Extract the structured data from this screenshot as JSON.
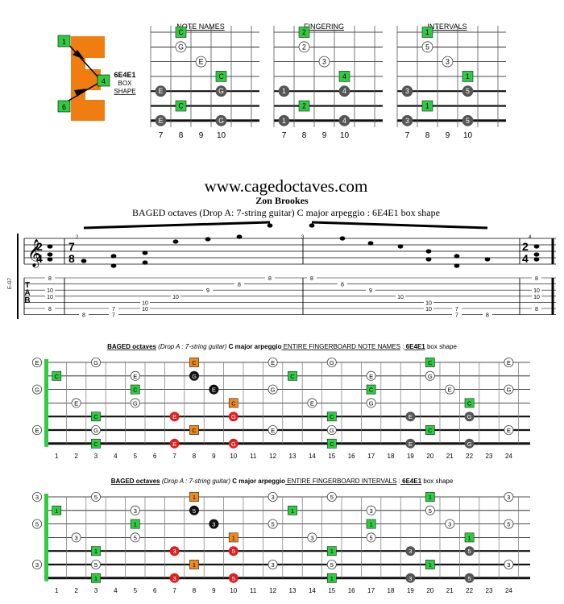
{
  "logo": {
    "letter": "E",
    "nodes": [
      "1",
      "4",
      "6"
    ],
    "shape_name": "6E4E1",
    "shape_word1": "BOX",
    "shape_word2": "SHAPE"
  },
  "small_diagrams": [
    {
      "title": "NOTE NAMES",
      "frets": [
        "7",
        "8",
        "9",
        "10"
      ],
      "markers": [
        {
          "s": 0,
          "f": 8,
          "t": "C",
          "k": "root"
        },
        {
          "s": 1,
          "f": 8,
          "t": "G",
          "k": "w"
        },
        {
          "s": 2,
          "f": 9,
          "t": "E",
          "k": "w"
        },
        {
          "s": 3,
          "f": 10,
          "t": "C",
          "k": "root"
        },
        {
          "s": 4,
          "f": 7,
          "t": "E",
          "k": "grey"
        },
        {
          "s": 4,
          "f": 10,
          "t": "G",
          "k": "grey"
        },
        {
          "s": 5,
          "f": 8,
          "t": "C",
          "k": "root"
        },
        {
          "s": 6,
          "f": 7,
          "t": "E",
          "k": "grey"
        },
        {
          "s": 6,
          "f": 10,
          "t": "G",
          "k": "grey"
        }
      ]
    },
    {
      "title": "FINGERING",
      "frets": [
        "7",
        "8",
        "9",
        "10"
      ],
      "markers": [
        {
          "s": 0,
          "f": 8,
          "t": "2",
          "k": "root"
        },
        {
          "s": 1,
          "f": 8,
          "t": "2",
          "k": "w"
        },
        {
          "s": 2,
          "f": 9,
          "t": "3",
          "k": "w"
        },
        {
          "s": 3,
          "f": 10,
          "t": "4",
          "k": "root"
        },
        {
          "s": 4,
          "f": 7,
          "t": "1",
          "k": "grey"
        },
        {
          "s": 4,
          "f": 10,
          "t": "4",
          "k": "grey"
        },
        {
          "s": 5,
          "f": 8,
          "t": "2",
          "k": "root"
        },
        {
          "s": 6,
          "f": 7,
          "t": "1",
          "k": "grey"
        },
        {
          "s": 6,
          "f": 10,
          "t": "4",
          "k": "grey"
        }
      ]
    },
    {
      "title": "INTERVALS",
      "frets": [
        "7",
        "8",
        "9",
        "10"
      ],
      "markers": [
        {
          "s": 0,
          "f": 8,
          "t": "1",
          "k": "root"
        },
        {
          "s": 1,
          "f": 8,
          "t": "5",
          "k": "w"
        },
        {
          "s": 2,
          "f": 9,
          "t": "3",
          "k": "w"
        },
        {
          "s": 3,
          "f": 10,
          "t": "1",
          "k": "root"
        },
        {
          "s": 4,
          "f": 7,
          "t": "3",
          "k": "grey"
        },
        {
          "s": 4,
          "f": 10,
          "t": "5",
          "k": "grey"
        },
        {
          "s": 5,
          "f": 8,
          "t": "1",
          "k": "root"
        },
        {
          "s": 6,
          "f": 7,
          "t": "3",
          "k": "grey"
        },
        {
          "s": 6,
          "f": 10,
          "t": "5",
          "k": "grey"
        }
      ]
    }
  ],
  "header": {
    "site": "www.cagedoctaves.com",
    "author": "Zon Brookes",
    "subtitle": "BAGED octaves (Drop A: 7-string guitar) C major arpeggio : 6E4E1 box shape"
  },
  "score": {
    "time_sig_top": "2",
    "time_sig_bottom": "4",
    "time_sig2_top": "7",
    "time_sig2_bottom": "8",
    "measure_numbers": [
      "2",
      "3",
      "4"
    ],
    "tuning_label": "E-G7",
    "tab_letters": [
      "T",
      "A",
      "B"
    ],
    "tab_numbers": [
      {
        "s": 0,
        "c": 0,
        "t": "8"
      },
      {
        "s": 2,
        "c": 0,
        "t": "10"
      },
      {
        "s": 3,
        "c": 0,
        "t": "10"
      },
      {
        "s": 5,
        "c": 0,
        "t": "8"
      },
      {
        "s": 6,
        "c": 1,
        "t": "8"
      },
      {
        "s": 5,
        "c": 2,
        "t": "7"
      },
      {
        "s": 6,
        "c": 2,
        "t": "7"
      },
      {
        "s": 4,
        "c": 3,
        "t": "10"
      },
      {
        "s": 5,
        "c": 3,
        "t": "10"
      },
      {
        "s": 3,
        "c": 4,
        "t": "10"
      },
      {
        "s": 2,
        "c": 5,
        "t": "9"
      },
      {
        "s": 1,
        "c": 6,
        "t": "8"
      },
      {
        "s": 0,
        "c": 7,
        "t": "8"
      },
      {
        "s": 0,
        "c": 8,
        "t": "8"
      },
      {
        "s": 1,
        "c": 9,
        "t": "8"
      },
      {
        "s": 2,
        "c": 10,
        "t": "9"
      },
      {
        "s": 3,
        "c": 11,
        "t": "10"
      },
      {
        "s": 4,
        "c": 12,
        "t": "10"
      },
      {
        "s": 5,
        "c": 12,
        "t": "10"
      },
      {
        "s": 5,
        "c": 13,
        "t": "7"
      },
      {
        "s": 6,
        "c": 13,
        "t": "7"
      },
      {
        "s": 6,
        "c": 14,
        "t": "8"
      },
      {
        "s": 0,
        "c": 15,
        "t": "8"
      },
      {
        "s": 2,
        "c": 15,
        "t": "10"
      },
      {
        "s": 3,
        "c": 15,
        "t": "10"
      },
      {
        "s": 5,
        "c": 15,
        "t": "8"
      }
    ]
  },
  "fretboards": [
    {
      "title_bold": "BAGED octaves",
      "title_paren": "(Drop A : 7-string guitar)",
      "title_mid": "C major arpeggio",
      "title_under": "ENTIRE FINGERBOARD NOTE NAMES",
      "title_sep": ":",
      "title_shape": "6E4E1",
      "title_tail": "box shape",
      "fret_numbers": [
        "1",
        "2",
        "3",
        "4",
        "5",
        "6",
        "7",
        "8",
        "9",
        "10",
        "11",
        "12",
        "13",
        "14",
        "15",
        "16",
        "17",
        "18",
        "19",
        "20",
        "21",
        "22",
        "23",
        "24"
      ],
      "markers": [
        {
          "s": 0,
          "f": 0,
          "t": "E",
          "k": "w"
        },
        {
          "s": 0,
          "f": 3,
          "t": "G",
          "k": "w"
        },
        {
          "s": 0,
          "f": 8,
          "t": "C",
          "k": "orange"
        },
        {
          "s": 0,
          "f": 12,
          "t": "E",
          "k": "w"
        },
        {
          "s": 0,
          "f": 15,
          "t": "G",
          "k": "w"
        },
        {
          "s": 0,
          "f": 20,
          "t": "C",
          "k": "root"
        },
        {
          "s": 0,
          "f": 24,
          "t": "E",
          "k": "w"
        },
        {
          "s": 1,
          "f": 1,
          "t": "C",
          "k": "root"
        },
        {
          "s": 1,
          "f": 5,
          "t": "E",
          "k": "w"
        },
        {
          "s": 1,
          "f": 8,
          "t": "G",
          "k": "black"
        },
        {
          "s": 1,
          "f": 13,
          "t": "C",
          "k": "root"
        },
        {
          "s": 1,
          "f": 17,
          "t": "E",
          "k": "w"
        },
        {
          "s": 1,
          "f": 20,
          "t": "G",
          "k": "w"
        },
        {
          "s": 2,
          "f": 0,
          "t": "G",
          "k": "w"
        },
        {
          "s": 2,
          "f": 5,
          "t": "C",
          "k": "root"
        },
        {
          "s": 2,
          "f": 9,
          "t": "E",
          "k": "black"
        },
        {
          "s": 2,
          "f": 12,
          "t": "G",
          "k": "w"
        },
        {
          "s": 2,
          "f": 17,
          "t": "C",
          "k": "root"
        },
        {
          "s": 2,
          "f": 21,
          "t": "E",
          "k": "w"
        },
        {
          "s": 2,
          "f": 24,
          "t": "G",
          "k": "w"
        },
        {
          "s": 3,
          "f": 2,
          "t": "E",
          "k": "w"
        },
        {
          "s": 3,
          "f": 5,
          "t": "G",
          "k": "w"
        },
        {
          "s": 3,
          "f": 10,
          "t": "C",
          "k": "orange"
        },
        {
          "s": 3,
          "f": 14,
          "t": "E",
          "k": "w"
        },
        {
          "s": 3,
          "f": 17,
          "t": "G",
          "k": "w"
        },
        {
          "s": 3,
          "f": 22,
          "t": "C",
          "k": "root"
        },
        {
          "s": 4,
          "f": 3,
          "t": "C",
          "k": "root"
        },
        {
          "s": 4,
          "f": 7,
          "t": "E",
          "k": "red"
        },
        {
          "s": 4,
          "f": 10,
          "t": "G",
          "k": "red"
        },
        {
          "s": 4,
          "f": 15,
          "t": "C",
          "k": "root"
        },
        {
          "s": 4,
          "f": 19,
          "t": "E",
          "k": "grey"
        },
        {
          "s": 4,
          "f": 22,
          "t": "G",
          "k": "grey"
        },
        {
          "s": 5,
          "f": 0,
          "t": "E",
          "k": "w"
        },
        {
          "s": 5,
          "f": 3,
          "t": "G",
          "k": "w"
        },
        {
          "s": 5,
          "f": 8,
          "t": "C",
          "k": "orange"
        },
        {
          "s": 5,
          "f": 12,
          "t": "E",
          "k": "w"
        },
        {
          "s": 5,
          "f": 15,
          "t": "G",
          "k": "w"
        },
        {
          "s": 5,
          "f": 20,
          "t": "C",
          "k": "root"
        },
        {
          "s": 5,
          "f": 24,
          "t": "E",
          "k": "w"
        },
        {
          "s": 6,
          "f": 3,
          "t": "C",
          "k": "root"
        },
        {
          "s": 6,
          "f": 7,
          "t": "E",
          "k": "red"
        },
        {
          "s": 6,
          "f": 10,
          "t": "G",
          "k": "red"
        },
        {
          "s": 6,
          "f": 15,
          "t": "C",
          "k": "root"
        },
        {
          "s": 6,
          "f": 19,
          "t": "E",
          "k": "grey"
        },
        {
          "s": 6,
          "f": 22,
          "t": "G",
          "k": "grey"
        }
      ]
    },
    {
      "title_bold": "BAGED octaves",
      "title_paren": "(Drop A : 7-string guitar)",
      "title_mid": "C major arpeggio",
      "title_under": "ENTIRE FINGERBOARD INTERVALS",
      "title_sep": ":",
      "title_shape": "6E4E1",
      "title_tail": "box shape",
      "fret_numbers": [
        "1",
        "2",
        "3",
        "4",
        "5",
        "6",
        "7",
        "8",
        "9",
        "10",
        "11",
        "12",
        "13",
        "14",
        "15",
        "16",
        "17",
        "18",
        "19",
        "20",
        "21",
        "22",
        "23",
        "24"
      ],
      "markers": [
        {
          "s": 0,
          "f": 0,
          "t": "3",
          "k": "w"
        },
        {
          "s": 0,
          "f": 3,
          "t": "5",
          "k": "w"
        },
        {
          "s": 0,
          "f": 8,
          "t": "1",
          "k": "orange"
        },
        {
          "s": 0,
          "f": 12,
          "t": "3",
          "k": "w"
        },
        {
          "s": 0,
          "f": 15,
          "t": "5",
          "k": "w"
        },
        {
          "s": 0,
          "f": 20,
          "t": "1",
          "k": "root"
        },
        {
          "s": 0,
          "f": 24,
          "t": "3",
          "k": "w"
        },
        {
          "s": 1,
          "f": 1,
          "t": "1",
          "k": "root"
        },
        {
          "s": 1,
          "f": 5,
          "t": "3",
          "k": "w"
        },
        {
          "s": 1,
          "f": 8,
          "t": "5",
          "k": "black"
        },
        {
          "s": 1,
          "f": 13,
          "t": "1",
          "k": "root"
        },
        {
          "s": 1,
          "f": 17,
          "t": "3",
          "k": "w"
        },
        {
          "s": 1,
          "f": 20,
          "t": "5",
          "k": "w"
        },
        {
          "s": 2,
          "f": 0,
          "t": "5",
          "k": "w"
        },
        {
          "s": 2,
          "f": 5,
          "t": "1",
          "k": "root"
        },
        {
          "s": 2,
          "f": 9,
          "t": "3",
          "k": "black"
        },
        {
          "s": 2,
          "f": 12,
          "t": "5",
          "k": "w"
        },
        {
          "s": 2,
          "f": 17,
          "t": "1",
          "k": "root"
        },
        {
          "s": 2,
          "f": 21,
          "t": "3",
          "k": "w"
        },
        {
          "s": 2,
          "f": 24,
          "t": "5",
          "k": "w"
        },
        {
          "s": 3,
          "f": 2,
          "t": "3",
          "k": "w"
        },
        {
          "s": 3,
          "f": 5,
          "t": "5",
          "k": "w"
        },
        {
          "s": 3,
          "f": 10,
          "t": "1",
          "k": "orange"
        },
        {
          "s": 3,
          "f": 14,
          "t": "3",
          "k": "w"
        },
        {
          "s": 3,
          "f": 17,
          "t": "5",
          "k": "w"
        },
        {
          "s": 3,
          "f": 22,
          "t": "1",
          "k": "root"
        },
        {
          "s": 4,
          "f": 3,
          "t": "1",
          "k": "root"
        },
        {
          "s": 4,
          "f": 7,
          "t": "3",
          "k": "red"
        },
        {
          "s": 4,
          "f": 10,
          "t": "5",
          "k": "red"
        },
        {
          "s": 4,
          "f": 15,
          "t": "1",
          "k": "root"
        },
        {
          "s": 4,
          "f": 19,
          "t": "3",
          "k": "grey"
        },
        {
          "s": 4,
          "f": 22,
          "t": "5",
          "k": "grey"
        },
        {
          "s": 5,
          "f": 0,
          "t": "3",
          "k": "w"
        },
        {
          "s": 5,
          "f": 3,
          "t": "5",
          "k": "w"
        },
        {
          "s": 5,
          "f": 8,
          "t": "1",
          "k": "orange"
        },
        {
          "s": 5,
          "f": 12,
          "t": "3",
          "k": "w"
        },
        {
          "s": 5,
          "f": 15,
          "t": "5",
          "k": "w"
        },
        {
          "s": 5,
          "f": 20,
          "t": "1",
          "k": "root"
        },
        {
          "s": 5,
          "f": 24,
          "t": "3",
          "k": "w"
        },
        {
          "s": 6,
          "f": 3,
          "t": "1",
          "k": "root"
        },
        {
          "s": 6,
          "f": 7,
          "t": "3",
          "k": "red"
        },
        {
          "s": 6,
          "f": 10,
          "t": "5",
          "k": "red"
        },
        {
          "s": 6,
          "f": 15,
          "t": "1",
          "k": "root"
        },
        {
          "s": 6,
          "f": 19,
          "t": "3",
          "k": "grey"
        },
        {
          "s": 6,
          "f": 22,
          "t": "5",
          "k": "grey"
        }
      ]
    }
  ],
  "colors": {
    "root": "#2ecc40",
    "orange": "#f08a1c",
    "red": "#e02020",
    "black": "#111111",
    "grey": "#555555",
    "logo": "#f07d10",
    "nut": "#2ecc40"
  }
}
